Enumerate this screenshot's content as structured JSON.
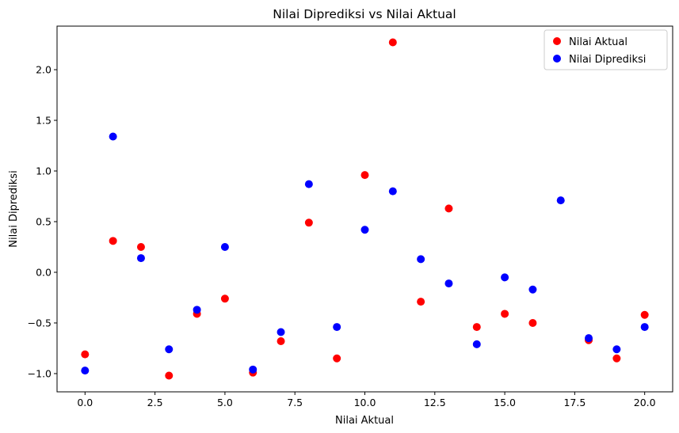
{
  "chart_data": {
    "type": "scatter",
    "title": "Nilai Diprediksi vs Nilai Aktual",
    "xlabel": "Nilai Aktual",
    "ylabel": "Nilai Diprediksi",
    "xlim": [
      -1.0,
      21.0
    ],
    "ylim": [
      -1.18,
      2.43
    ],
    "xticks": [
      0.0,
      2.5,
      5.0,
      7.5,
      10.0,
      12.5,
      15.0,
      17.5,
      20.0
    ],
    "xtick_labels": [
      "0.0",
      "2.5",
      "5.0",
      "7.5",
      "10.0",
      "12.5",
      "15.0",
      "17.5",
      "20.0"
    ],
    "yticks": [
      -1.0,
      -0.5,
      0.0,
      0.5,
      1.0,
      1.5,
      2.0
    ],
    "ytick_labels": [
      "−1.0",
      "−0.5",
      "0.0",
      "0.5",
      "1.0",
      "1.5",
      "2.0"
    ],
    "grid": false,
    "legend_position": "top-right",
    "series": [
      {
        "name": "Nilai Aktual",
        "color": "#ff0000",
        "x": [
          0,
          1,
          2,
          3,
          4,
          5,
          6,
          7,
          8,
          9,
          10,
          11,
          12,
          13,
          14,
          15,
          16,
          18,
          19,
          20
        ],
        "y": [
          -0.81,
          0.31,
          0.25,
          -1.02,
          -0.41,
          -0.26,
          -0.99,
          -0.68,
          0.49,
          -0.85,
          0.96,
          2.27,
          -0.29,
          0.63,
          -0.54,
          -0.41,
          -0.5,
          -0.67,
          -0.85,
          -0.42
        ]
      },
      {
        "name": "Nilai Diprediksi",
        "color": "#0000ff",
        "x": [
          0,
          1,
          2,
          3,
          4,
          5,
          6,
          7,
          8,
          9,
          10,
          11,
          12,
          13,
          14,
          15,
          16,
          17,
          18,
          19,
          20
        ],
        "y": [
          -0.97,
          1.34,
          0.14,
          -0.76,
          -0.37,
          0.25,
          -0.96,
          -0.59,
          0.87,
          -0.54,
          0.42,
          0.8,
          0.13,
          -0.11,
          -0.71,
          -0.05,
          -0.17,
          0.71,
          -0.65,
          -0.76,
          -0.54
        ]
      }
    ]
  }
}
